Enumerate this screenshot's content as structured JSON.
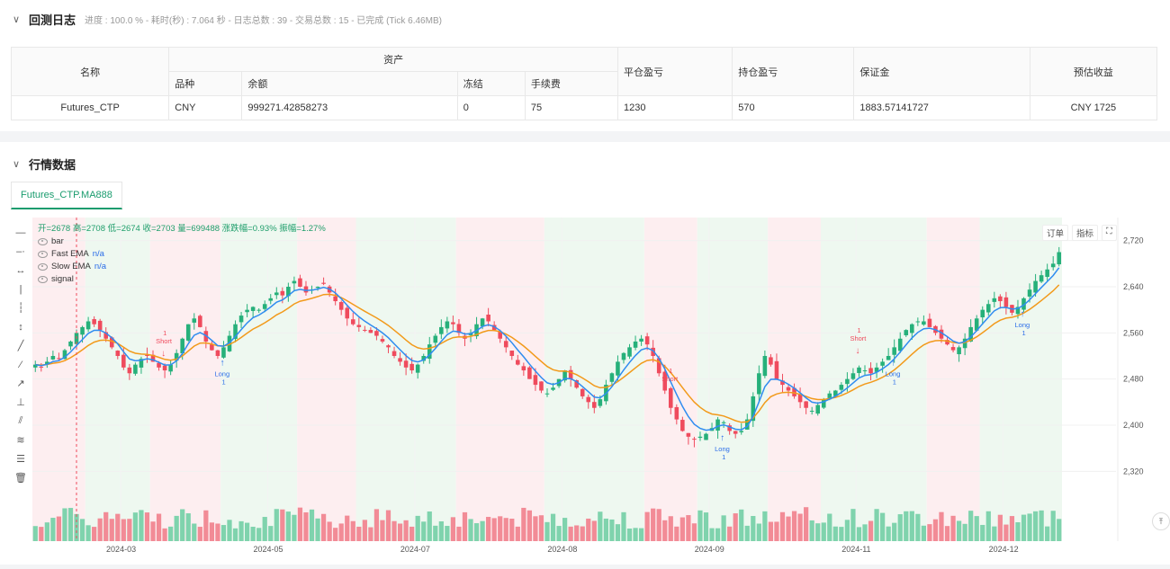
{
  "backtest_log": {
    "title": "回测日志",
    "meta": "进度 : 100.0 % - 耗时(秒) : 7.064  秒 - 日志总数 : 39 - 交易总数 : 15 - 已完成 (Tick 6.46MB)"
  },
  "account_table": {
    "headers": {
      "name": "名称",
      "assets": "资产",
      "closed_pnl": "平仓盈亏",
      "position_pnl": "持仓盈亏",
      "margin": "保证金",
      "est_return": "预估收益"
    },
    "sub_headers": {
      "symbol": "品种",
      "balance": "余额",
      "frozen": "冻结",
      "fee": "手续费"
    },
    "row": {
      "name": "Futures_CTP",
      "symbol": "CNY",
      "balance": "999271.42858273",
      "frozen": "0",
      "fee": "75",
      "closed_pnl": "1230",
      "position_pnl": "570",
      "margin": "1883.57141727",
      "est_return": "CNY 1725"
    }
  },
  "market": {
    "title": "行情数据",
    "tab": "Futures_CTP.MA888"
  },
  "chart_legend": {
    "ohlc": "开=2678 高=2708 低=2674 收=2703 量=699488 涨跌幅=0.93% 振幅=1.27%",
    "bar": "bar",
    "fast_ema": "Fast EMA",
    "slow_ema": "Slow EMA",
    "na": "n/a",
    "signal": "signal"
  },
  "chart_buttons": {
    "order": "订单",
    "indicator": "指标",
    "expand": "⛶"
  },
  "chart_data": {
    "type": "candlestick",
    "ylim": [
      2280,
      2760
    ],
    "y_ticks": [
      2720,
      2640,
      2560,
      2480,
      2400,
      2320
    ],
    "x_tick_labels": [
      "2024-03",
      "2024-05",
      "2024-07",
      "2024-08",
      "2024-09",
      "2024-11",
      "2024-12"
    ],
    "closes": [
      2505,
      2500,
      2510,
      2520,
      2515,
      2530,
      2545,
      2560,
      2570,
      2580,
      2575,
      2565,
      2550,
      2535,
      2520,
      2500,
      2490,
      2505,
      2515,
      2520,
      2510,
      2500,
      2495,
      2505,
      2525,
      2550,
      2575,
      2585,
      2570,
      2545,
      2530,
      2520,
      2535,
      2555,
      2575,
      2590,
      2600,
      2605,
      2600,
      2610,
      2620,
      2630,
      2625,
      2640,
      2650,
      2640,
      2630,
      2635,
      2640,
      2645,
      2630,
      2615,
      2600,
      2585,
      2575,
      2570,
      2565,
      2560,
      2555,
      2545,
      2535,
      2520,
      2510,
      2500,
      2495,
      2505,
      2520,
      2540,
      2555,
      2570,
      2580,
      2575,
      2560,
      2550,
      2560,
      2575,
      2585,
      2580,
      2565,
      2550,
      2535,
      2520,
      2505,
      2495,
      2480,
      2470,
      2460,
      2455,
      2465,
      2480,
      2495,
      2480,
      2465,
      2450,
      2440,
      2430,
      2445,
      2470,
      2490,
      2510,
      2525,
      2535,
      2545,
      2550,
      2540,
      2520,
      2490,
      2460,
      2430,
      2410,
      2390,
      2380,
      2375,
      2380,
      2385,
      2395,
      2410,
      2405,
      2390,
      2385,
      2390,
      2410,
      2450,
      2490,
      2520,
      2505,
      2480,
      2470,
      2460,
      2450,
      2440,
      2430,
      2425,
      2435,
      2445,
      2455,
      2460,
      2470,
      2480,
      2490,
      2500,
      2495,
      2490,
      2500,
      2510,
      2520,
      2535,
      2550,
      2565,
      2575,
      2580,
      2580,
      2570,
      2560,
      2550,
      2540,
      2530,
      2535,
      2550,
      2570,
      2585,
      2600,
      2610,
      2620,
      2615,
      2605,
      2595,
      2605,
      2620,
      2635,
      2650,
      2660,
      2670,
      2680,
      2700
    ],
    "signals": [
      {
        "label": "Short",
        "count": "1"
      },
      {
        "label": "Long",
        "count": "1"
      },
      {
        "label": "Short",
        "count": "1"
      },
      {
        "label": "Short",
        "count": "1"
      },
      {
        "label": "Long",
        "count": "1"
      },
      {
        "label": "Long",
        "count": "1"
      },
      {
        "label": "Long",
        "count": "1"
      }
    ],
    "legend_colors": {
      "fast": "#2f8cf0",
      "slow": "#f29a1b",
      "up": "#26b07a",
      "down": "#ef4b5d"
    }
  }
}
